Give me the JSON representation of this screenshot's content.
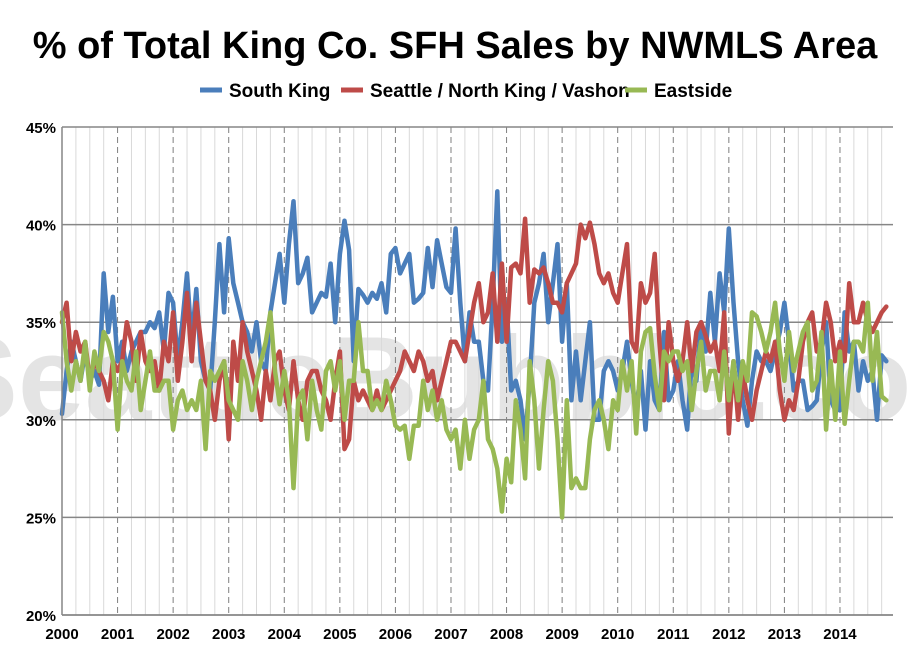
{
  "chart_data": {
    "type": "line",
    "title": "% of Total King Co. SFH Sales by NWMLS Area",
    "watermark": "SeattleBubble.com",
    "xlabel": "",
    "ylabel": "",
    "x_start": "2000-01",
    "x_frequency": "monthly",
    "x_tick_labels": [
      "2000",
      "2001",
      "2002",
      "2003",
      "2004",
      "2005",
      "2006",
      "2007",
      "2008",
      "2009",
      "2010",
      "2011",
      "2012",
      "2013",
      "2014"
    ],
    "ylim": [
      20,
      45
    ],
    "y_tick_labels": [
      "20%",
      "25%",
      "30%",
      "35%",
      "40%",
      "45%"
    ],
    "y_ticks": [
      20,
      25,
      30,
      35,
      40,
      45
    ],
    "grid": true,
    "legend_position": "top",
    "series": [
      {
        "name": "South King",
        "color": "#4a7ebb",
        "values": [
          30.3,
          32.5,
          34,
          33,
          32,
          33.5,
          32,
          32.5,
          31.8,
          37.5,
          34.5,
          36.3,
          33,
          34,
          32.5,
          33.5,
          34,
          34.5,
          34.5,
          35,
          34.7,
          35.5,
          33.5,
          36.5,
          36,
          33,
          35,
          37.5,
          34,
          36.7,
          33,
          32,
          31.5,
          35,
          39,
          35.5,
          39.3,
          37,
          36,
          35,
          34.5,
          33.5,
          35,
          33,
          32.5,
          35.5,
          37,
          38.5,
          36,
          39,
          41.2,
          37,
          37.5,
          38.3,
          35.5,
          36,
          36.5,
          36.3,
          38,
          35,
          38.5,
          40.2,
          38.7,
          33,
          36.7,
          36.4,
          36,
          36.5,
          36.2,
          37,
          35.5,
          38.5,
          38.8,
          37.5,
          38,
          38.5,
          36,
          36.2,
          36.5,
          38.8,
          36.8,
          39.2,
          38,
          36.8,
          36.5,
          39.8,
          36,
          33,
          35.5,
          34,
          34,
          32,
          31.5,
          36,
          41.7,
          34,
          36,
          31.5,
          32,
          31,
          29,
          32,
          36,
          37,
          38.5,
          35,
          37,
          39,
          34,
          37,
          31,
          33.5,
          31,
          33,
          35,
          30,
          30,
          32.5,
          33,
          32.5,
          31.5,
          32.5,
          34,
          32,
          30.5,
          32.5,
          29.5,
          33,
          31,
          30.5,
          34.5,
          31,
          31.5,
          33,
          31,
          29.5,
          33,
          32,
          35,
          33.5,
          36.5,
          34,
          37.5,
          35.5,
          39.8,
          36,
          33,
          31,
          29.7,
          32,
          33.5,
          33,
          33,
          32.5,
          33.5,
          34.5,
          36,
          34,
          31.5,
          32,
          32,
          30.5,
          30.7,
          31,
          33.5,
          35,
          31,
          30.5,
          30.5,
          35.5,
          33.5,
          34,
          31.5,
          33,
          32,
          32.5,
          30,
          33.3,
          33
        ]
      },
      {
        "name": "Seattle / North King / Vashon",
        "color": "#be4b48",
        "values": [
          35,
          36,
          33,
          34.5,
          33.5,
          34,
          32,
          33,
          32.5,
          32,
          31,
          33,
          32.5,
          33,
          35,
          34,
          32,
          34.5,
          33,
          32.5,
          33,
          31.5,
          34,
          33,
          35.5,
          32,
          34,
          36.5,
          33,
          36,
          34,
          32,
          31.5,
          30,
          32,
          33,
          29,
          34,
          32,
          35,
          33.5,
          32.5,
          31.5,
          30,
          32.5,
          31,
          33,
          33.5,
          31.5,
          30.5,
          33,
          31,
          30,
          32,
          32.5,
          32.5,
          31.5,
          31,
          30,
          32,
          33.5,
          28.5,
          29,
          32,
          31,
          31.5,
          31,
          30.5,
          31.5,
          30.5,
          31,
          31.5,
          32,
          32.5,
          33.5,
          33,
          32.5,
          33.5,
          33,
          32,
          32.5,
          31,
          32,
          33,
          34,
          34,
          33.5,
          33,
          34.5,
          36,
          37,
          35,
          35.5,
          37.5,
          34,
          38,
          34,
          37.8,
          38,
          37.5,
          40.3,
          36,
          37.7,
          37.5,
          37.8,
          37,
          36,
          36,
          35.5,
          37,
          37.5,
          38,
          40,
          39.3,
          40.1,
          39,
          37.5,
          37,
          37.5,
          36.5,
          36,
          37.5,
          39,
          34,
          33.5,
          37,
          36,
          36.5,
          38.5,
          34,
          31,
          35,
          33,
          32,
          33,
          35,
          32.5,
          34.5,
          35,
          34.3,
          33.5,
          34,
          32.5,
          35.5,
          29.3,
          33,
          30,
          32.5,
          31,
          30,
          31.5,
          32.5,
          33.5,
          33,
          34,
          31.5,
          30,
          31,
          30.5,
          32,
          34,
          35,
          35.5,
          33.5,
          34,
          36,
          35,
          33,
          34,
          33,
          37,
          35,
          35,
          36,
          35,
          34.5,
          35,
          35.5,
          35.8
        ]
      },
      {
        "name": "Eastside",
        "color": "#98b954",
        "values": [
          35.5,
          33,
          31.5,
          33,
          32,
          34,
          31.5,
          33.5,
          32.5,
          34.5,
          34,
          33,
          29.5,
          33,
          32,
          31.5,
          33.5,
          30.5,
          32,
          33.5,
          31.5,
          31.5,
          32,
          32,
          29.5,
          31,
          31.5,
          30.5,
          31,
          30.5,
          32,
          28.5,
          32.5,
          32,
          32.5,
          33,
          31,
          30.5,
          30,
          33,
          32,
          30.5,
          32,
          33,
          34,
          35.5,
          32.5,
          30.8,
          32.5,
          31,
          26.5,
          31,
          31.5,
          29,
          32,
          30.5,
          29.5,
          32.5,
          33,
          31.5,
          33,
          30,
          32,
          32,
          35,
          32.5,
          32.5,
          30.5,
          31,
          30.5,
          32,
          31,
          29.7,
          29.5,
          29.7,
          28,
          29.7,
          29.7,
          32,
          30.5,
          31.5,
          30,
          31,
          29.5,
          29,
          29.5,
          27.5,
          30,
          28,
          29.5,
          30,
          32,
          29,
          28.5,
          27.5,
          25.3,
          28,
          26.8,
          31,
          29.5,
          27,
          33,
          31,
          27.5,
          30.5,
          33,
          32,
          29,
          25,
          31,
          26.5,
          27,
          26.5,
          26.5,
          29,
          30.5,
          31,
          30,
          28.5,
          31,
          30.5,
          33,
          31.5,
          33,
          29.3,
          33.5,
          34.5,
          34.7,
          32.3,
          30.5,
          33.5,
          33,
          33.5,
          33.5,
          32.5,
          33,
          30.5,
          32.5,
          34,
          31.5,
          32.5,
          32.5,
          31,
          33.5,
          31,
          33,
          31,
          33,
          32,
          35.5,
          35.3,
          34.5,
          33.5,
          34.5,
          36,
          33.5,
          32,
          34.5,
          32.5,
          33.5,
          34.5,
          35,
          31.5,
          32,
          34.5,
          29.5,
          33,
          30,
          33.5,
          29.8,
          32,
          34,
          34,
          33.5,
          36,
          32,
          34.5,
          31.2,
          31
        ]
      }
    ]
  }
}
